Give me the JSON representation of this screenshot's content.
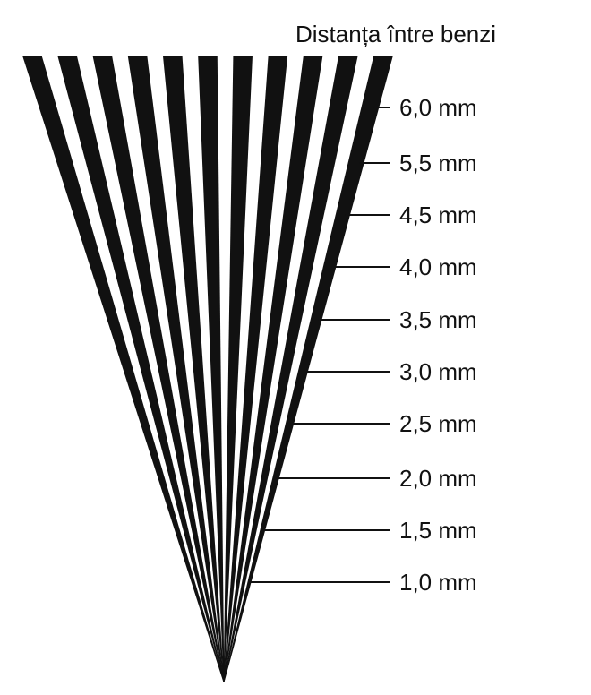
{
  "title": "Distanța între benzi",
  "colors": {
    "stripe": "#111111",
    "background": "#ffffff"
  },
  "stripe_count": 11,
  "scale_marks": [
    {
      "label": "6,0 mm",
      "spacing_mm": 6.0
    },
    {
      "label": "5,5 mm",
      "spacing_mm": 5.5
    },
    {
      "label": "4,5 mm",
      "spacing_mm": 4.5
    },
    {
      "label": "4,0 mm",
      "spacing_mm": 4.0
    },
    {
      "label": "3,5 mm",
      "spacing_mm": 3.5
    },
    {
      "label": "3,0 mm",
      "spacing_mm": 3.0
    },
    {
      "label": "2,5 mm",
      "spacing_mm": 2.5
    },
    {
      "label": "2,0 mm",
      "spacing_mm": 2.0
    },
    {
      "label": "1,5 mm",
      "spacing_mm": 1.5
    },
    {
      "label": "1,0 mm",
      "spacing_mm": 1.0
    }
  ]
}
